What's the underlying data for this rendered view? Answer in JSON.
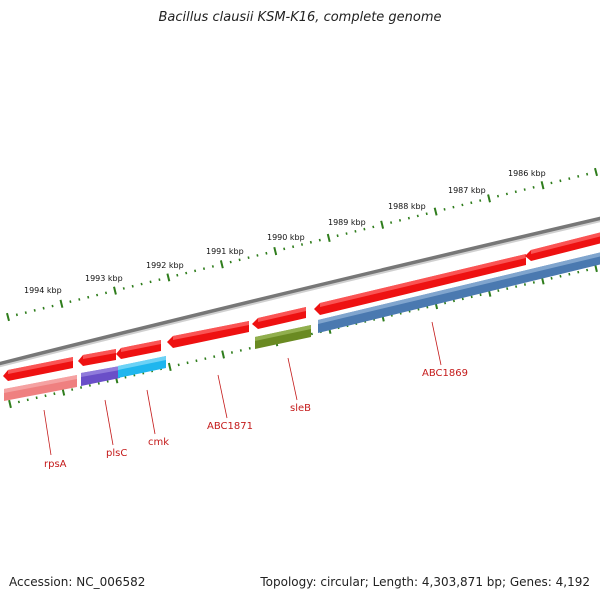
{
  "title": "Bacillus clausii KSM-K16, complete genome",
  "accession": "Accession: NC_006582",
  "summary": "Topology: circular; Length: 4,303,871 bp; Genes: 4,192",
  "colors": {
    "backbone": "#777777",
    "tick": "#2f7d1c",
    "label": "#c41a1a",
    "red_gene": "#ee1111",
    "pink_gene": "#ef8080",
    "purple_gene": "#6a4fc8",
    "cyan_gene": "#1fb6ee",
    "olive_gene": "#6a8a22",
    "blue_gene": "#4a79b0"
  },
  "scale": {
    "unit_labels": [
      "1986 kbp",
      "1987 kbp",
      "1988 kbp",
      "1989 kbp",
      "1990 kbp",
      "1991 kbp",
      "1992 kbp",
      "1993 kbp",
      "1994 kbp"
    ]
  },
  "genes": [
    {
      "label": "rpsA",
      "strand": "reverse",
      "color": "pink_gene",
      "icon": "reverse-strand-gene"
    },
    {
      "label": "plsC",
      "strand": "reverse",
      "color": "purple_gene",
      "icon": "reverse-strand-gene"
    },
    {
      "label": "cmk",
      "strand": "reverse",
      "color": "cyan_gene",
      "icon": "reverse-strand-gene"
    },
    {
      "label": "ABC1871",
      "strand": "forward",
      "color": "red_gene",
      "icon": "forward-strand-gene"
    },
    {
      "label": "sleB",
      "strand": "reverse",
      "color": "olive_gene",
      "icon": "reverse-strand-gene"
    },
    {
      "label": "ABC1869",
      "strand": "reverse",
      "color": "blue_gene",
      "icon": "reverse-strand-gene"
    }
  ]
}
